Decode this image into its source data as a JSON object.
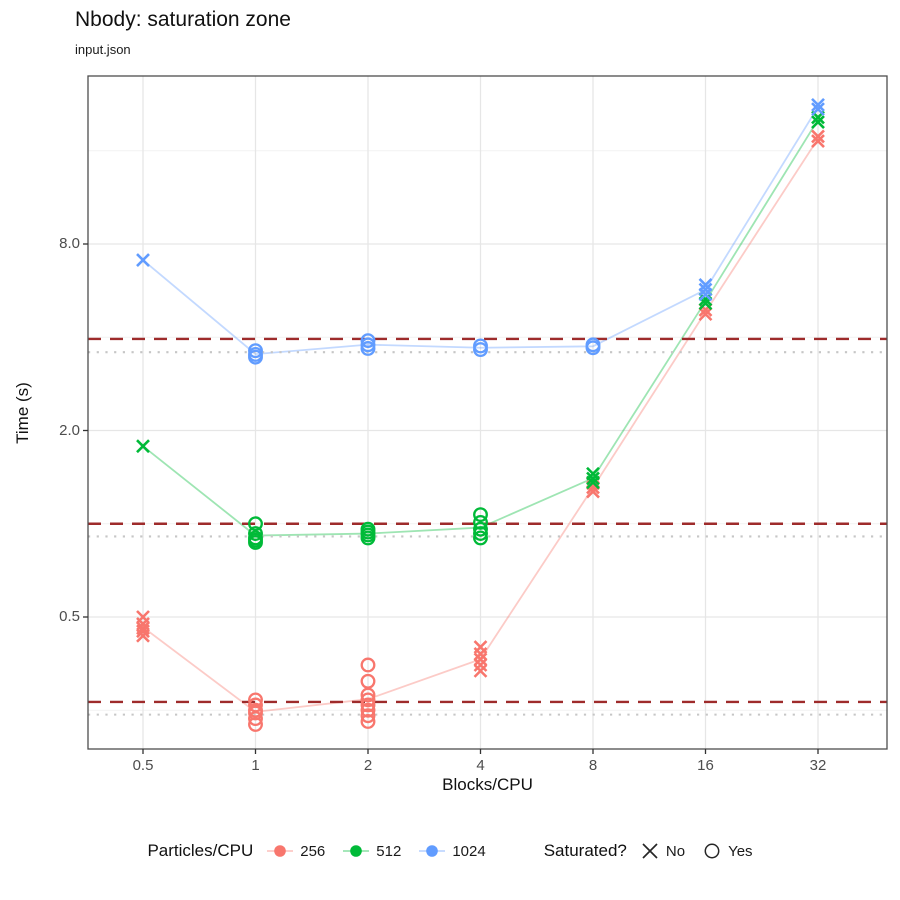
{
  "header": {
    "title": "Nbody: saturation zone",
    "subtitle": "input.json"
  },
  "chart_data": {
    "type": "scatter",
    "title": "Nbody: saturation zone",
    "subtitle": "input.json",
    "xlabel": "Blocks/CPU",
    "ylabel": "Time (s)",
    "x_scale": "log2",
    "y_scale": "log",
    "grid": "on",
    "x_ticks": [
      0.5,
      1,
      2,
      4,
      8,
      16,
      32
    ],
    "x_tick_labels": [
      "0.5",
      "1",
      "2",
      "4",
      "8",
      "16",
      "32"
    ],
    "y_ticks": [
      0.5,
      2.0,
      8.0
    ],
    "y_tick_labels": [
      "0.5",
      "2.0",
      "8.0"
    ],
    "y_minor_ticks": [
      0.25,
      1.0,
      4.0,
      16.0
    ],
    "x_range_approx": [
      0.35,
      45
    ],
    "y_range_approx": [
      0.19,
      29
    ],
    "legend_position": "bottom",
    "color_legend_title": "Particles/CPU",
    "shape_legend": {
      "title": "Saturated?",
      "entries": [
        {
          "shape": "x",
          "label": "No"
        },
        {
          "shape": "circle",
          "label": "Yes"
        }
      ]
    },
    "colors": {
      "dashed_ref": "#9E2B2B",
      "dotted_ref": "#C6C6C6",
      "grid_major": "#E6E6E6",
      "grid_minor": "#F2F2F2",
      "panel_border": "#4D4D4D",
      "tick_mark": "#333333",
      "shape_key": "#262626"
    },
    "series": [
      {
        "name": "256",
        "color": "#F8766D",
        "points": [
          [
            0.5,
            0.5,
            "no"
          ],
          [
            0.5,
            0.475,
            "no"
          ],
          [
            0.5,
            0.46,
            "no"
          ],
          [
            0.5,
            0.45,
            "no"
          ],
          [
            0.5,
            0.435,
            "no"
          ],
          [
            1,
            0.27,
            "yes"
          ],
          [
            1,
            0.26,
            "yes"
          ],
          [
            1,
            0.25,
            "yes"
          ],
          [
            1,
            0.245,
            "yes"
          ],
          [
            1,
            0.235,
            "yes"
          ],
          [
            1,
            0.225,
            "yes"
          ],
          [
            2,
            0.35,
            "yes"
          ],
          [
            2,
            0.31,
            "yes"
          ],
          [
            2,
            0.28,
            "yes"
          ],
          [
            2,
            0.27,
            "yes"
          ],
          [
            2,
            0.26,
            "yes"
          ],
          [
            2,
            0.25,
            "yes"
          ],
          [
            2,
            0.24,
            "yes"
          ],
          [
            2,
            0.23,
            "yes"
          ],
          [
            4,
            0.4,
            "no"
          ],
          [
            4,
            0.38,
            "no"
          ],
          [
            4,
            0.365,
            "no"
          ],
          [
            4,
            0.35,
            "no"
          ],
          [
            4,
            0.335,
            "no"
          ],
          [
            8,
            1.35,
            "no"
          ],
          [
            8,
            1.31,
            "no"
          ],
          [
            8,
            1.27,
            "no"
          ],
          [
            16,
            4.9,
            "no"
          ],
          [
            16,
            4.75,
            "no"
          ],
          [
            32,
            17.8,
            "no"
          ],
          [
            32,
            17.2,
            "no"
          ]
        ]
      },
      {
        "name": "512",
        "color": "#00BA38",
        "points": [
          [
            0.5,
            1.78,
            "no"
          ],
          [
            1,
            1.0,
            "yes"
          ],
          [
            1,
            0.93,
            "yes"
          ],
          [
            1,
            0.9,
            "yes"
          ],
          [
            1,
            0.885,
            "yes"
          ],
          [
            1,
            0.87,
            "yes"
          ],
          [
            2,
            0.96,
            "yes"
          ],
          [
            2,
            0.94,
            "yes"
          ],
          [
            2,
            0.92,
            "yes"
          ],
          [
            2,
            0.9,
            "yes"
          ],
          [
            4,
            1.07,
            "yes"
          ],
          [
            4,
            1.01,
            "yes"
          ],
          [
            4,
            0.96,
            "yes"
          ],
          [
            4,
            0.93,
            "yes"
          ],
          [
            4,
            0.9,
            "yes"
          ],
          [
            8,
            1.45,
            "no"
          ],
          [
            8,
            1.4,
            "no"
          ],
          [
            8,
            1.36,
            "no"
          ],
          [
            16,
            5.3,
            "no"
          ],
          [
            16,
            5.15,
            "no"
          ],
          [
            32,
            20.5,
            "no"
          ],
          [
            32,
            19.8,
            "no"
          ]
        ]
      },
      {
        "name": "1024",
        "color": "#619CFF",
        "points": [
          [
            0.5,
            7.1,
            "no"
          ],
          [
            1,
            3.62,
            "yes"
          ],
          [
            1,
            3.52,
            "yes"
          ],
          [
            1,
            3.45,
            "yes"
          ],
          [
            2,
            3.9,
            "yes"
          ],
          [
            2,
            3.78,
            "yes"
          ],
          [
            2,
            3.68,
            "yes"
          ],
          [
            4,
            3.75,
            "yes"
          ],
          [
            4,
            3.65,
            "yes"
          ],
          [
            8,
            3.78,
            "yes"
          ],
          [
            8,
            3.7,
            "yes"
          ],
          [
            16,
            5.9,
            "no"
          ],
          [
            16,
            5.7,
            "no"
          ],
          [
            16,
            5.5,
            "no"
          ],
          [
            32,
            22.5,
            "no"
          ],
          [
            32,
            21.8,
            "no"
          ]
        ]
      }
    ],
    "reference_lines": [
      {
        "series": "1024",
        "dashed_value": 3.95,
        "dotted_value": 3.58
      },
      {
        "series": "512",
        "dashed_value": 1.0,
        "dotted_value": 0.91
      },
      {
        "series": "256",
        "dashed_value": 0.266,
        "dotted_value": 0.242
      }
    ]
  }
}
